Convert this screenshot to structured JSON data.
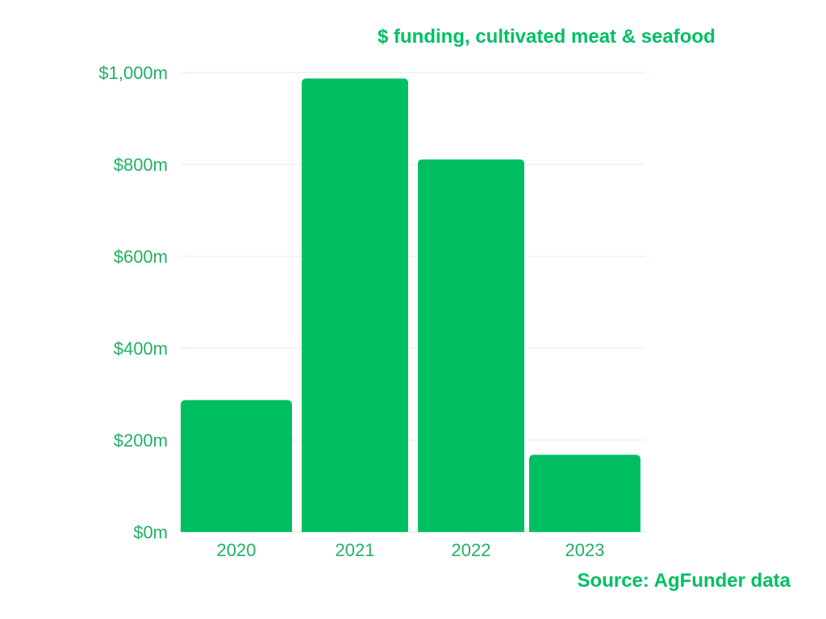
{
  "chart_data": {
    "type": "bar",
    "title": "$ funding, cultivated meat & seafood",
    "source": "Source: AgFunder data",
    "categories": [
      "2020",
      "2021",
      "2022",
      "2023"
    ],
    "values": [
      287,
      987,
      811,
      168
    ],
    "ylim": [
      0,
      1000
    ],
    "yticks": [
      0,
      200,
      400,
      600,
      800,
      1000
    ],
    "ytick_labels": [
      "$0m",
      "$200m",
      "$400m",
      "$600m",
      "$800m",
      "$1,000m"
    ],
    "xlabel": "",
    "ylabel": "",
    "grid": true,
    "legend": "none"
  },
  "colors": {
    "bar": "#00bf63",
    "text": "#00bf63",
    "tick_text": "#22b063",
    "grid": "#dcefe3",
    "axis": "#cde8d8"
  }
}
